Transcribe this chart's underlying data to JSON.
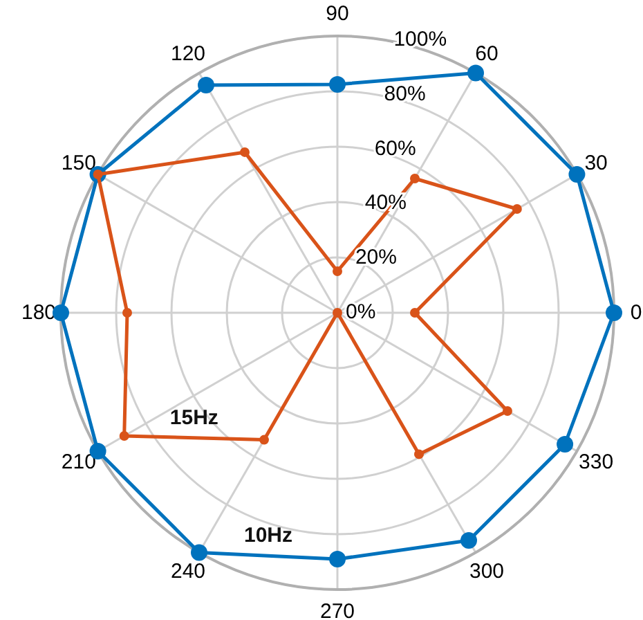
{
  "chart_data": {
    "type": "radar",
    "categories": [
      "90",
      "60",
      "30",
      "0",
      "330",
      "300",
      "270",
      "240",
      "210",
      "180",
      "150",
      "120"
    ],
    "series": [
      {
        "name": "10Hz",
        "color": "#0072bd",
        "values": [
          82.5,
          100,
          100,
          100,
          95,
          95,
          89,
          100,
          100,
          100,
          100,
          95
        ]
      },
      {
        "name": "15Hz",
        "color": "#d95319",
        "values": [
          15,
          56,
          75,
          28,
          71,
          59,
          0,
          53,
          89,
          76,
          100,
          67
        ]
      }
    ],
    "ylim": [
      0,
      100
    ],
    "yticks": [
      {
        "value": 0,
        "label": "0%"
      },
      {
        "value": 20,
        "label": "20%"
      },
      {
        "value": 40,
        "label": "40%"
      },
      {
        "value": 60,
        "label": "60%"
      },
      {
        "value": 80,
        "label": "80%"
      },
      {
        "value": 100,
        "label": "100%"
      }
    ],
    "grid": true,
    "marker": "circle"
  }
}
